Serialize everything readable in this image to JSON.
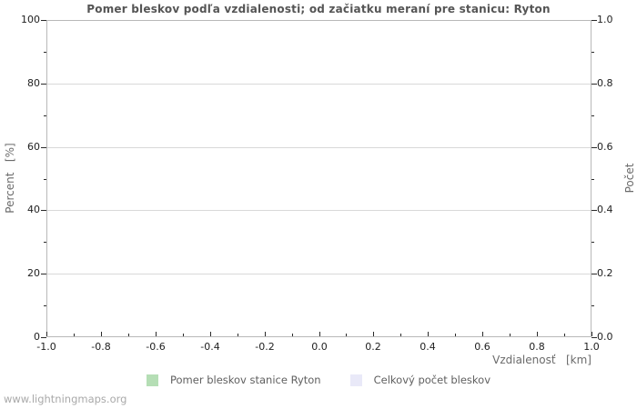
{
  "chart_data": {
    "type": "bar",
    "title": "Pomer bleskov podľa vzdialenosti; od začiatku meraní pre stanicu: Ryton",
    "x_axis": {
      "label": "Vzdialenosť   [km]",
      "min": -1.0,
      "max": 1.0,
      "major_ticks": [
        "-1.0",
        "-0.8",
        "-0.6",
        "-0.4",
        "-0.2",
        "0.0",
        "0.2",
        "0.4",
        "0.6",
        "0.8",
        "1.0"
      ],
      "minor_step": 0.1
    },
    "y_axis_left": {
      "label": "Percent   [%]",
      "min": 0,
      "max": 100,
      "major_ticks": [
        "0",
        "20",
        "40",
        "60",
        "80",
        "100"
      ],
      "minor_step": 10,
      "gridlines": [
        20,
        40,
        60,
        80
      ]
    },
    "y_axis_right": {
      "label": "Počet",
      "min": 0.0,
      "max": 1.0,
      "major_ticks": [
        "0.0",
        "0.2",
        "0.4",
        "0.6",
        "0.8",
        "1.0"
      ],
      "minor_step": 0.1
    },
    "series": [
      {
        "name": "Pomer bleskov stanice Ryton",
        "color": "#b5deb5",
        "axis": "left",
        "values": []
      },
      {
        "name": "Celkový počet bleskov",
        "color": "#e9e9f8",
        "axis": "right",
        "values": []
      }
    ],
    "grid": "horizontal-only",
    "legend_position": "bottom"
  },
  "footer": {
    "watermark": "www.lightningmaps.org"
  },
  "colors": {
    "background": "#ffffff",
    "axis_frame": "#b9b9b9",
    "gridline": "#d9d9d9",
    "tick": "#2a2a2a",
    "title_text": "#555555",
    "axis_title_text": "#6b6b6b",
    "tick_label_text": "#222222",
    "legend_text": "#5f5f5f",
    "watermark_text": "#a9a9a9",
    "series_station": "#b5deb5",
    "series_total": "#e9e9f8"
  }
}
